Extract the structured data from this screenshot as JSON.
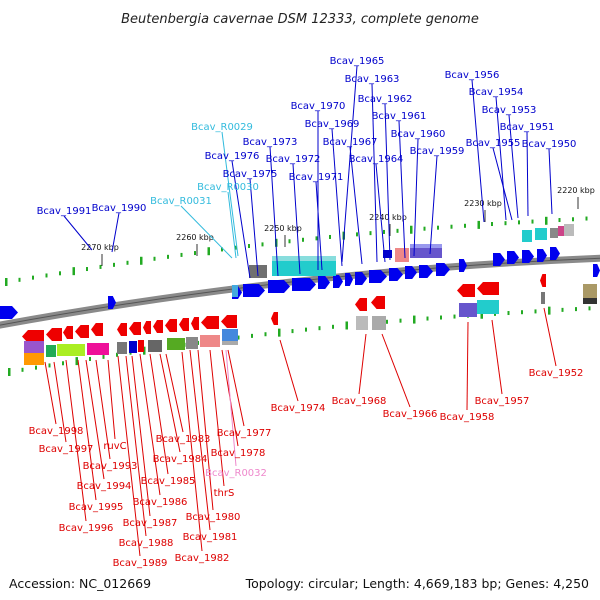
{
  "title": "Beutenbergia cavernae DSM 12333, complete genome",
  "footer": {
    "accession": "Accession: NC_012669",
    "topology": "Topology: circular; Length: 4,669,183 bp; Genes: 4,250"
  },
  "scale_ticks": [
    "2270 kbp",
    "2260 kbp",
    "2250 kbp",
    "2240 kbp",
    "2230 kbp",
    "2220 kbp"
  ],
  "labels_top": [
    {
      "name": "Bcav_1965",
      "color": "#0000cc"
    },
    {
      "name": "Bcav_1963",
      "color": "#0000cc"
    },
    {
      "name": "Bcav_1962",
      "color": "#0000cc"
    },
    {
      "name": "Bcav_1961",
      "color": "#0000cc"
    },
    {
      "name": "Bcav_1960",
      "color": "#0000cc"
    },
    {
      "name": "Bcav_1959",
      "color": "#0000cc"
    },
    {
      "name": "Bcav_1964",
      "color": "#0000cc"
    },
    {
      "name": "Bcav_1967",
      "color": "#0000cc"
    },
    {
      "name": "Bcav_1969",
      "color": "#0000cc"
    },
    {
      "name": "Bcav_1970",
      "color": "#0000cc"
    },
    {
      "name": "Bcav_1973",
      "color": "#0000cc"
    },
    {
      "name": "Bcav_1972",
      "color": "#0000cc"
    },
    {
      "name": "Bcav_1971",
      "color": "#0000cc"
    },
    {
      "name": "Bcav_1976",
      "color": "#0000cc"
    },
    {
      "name": "Bcav_1975",
      "color": "#0000cc"
    },
    {
      "name": "Bcav_R0029",
      "color": "#33bbdd"
    },
    {
      "name": "Bcav_R0030",
      "color": "#33bbdd"
    },
    {
      "name": "Bcav_R0031",
      "color": "#33bbdd"
    },
    {
      "name": "Bcav_1991",
      "color": "#0000cc"
    },
    {
      "name": "Bcav_1990",
      "color": "#0000cc"
    },
    {
      "name": "Bcav_1956",
      "color": "#0000cc"
    },
    {
      "name": "Bcav_1954",
      "color": "#0000cc"
    },
    {
      "name": "Bcav_1953",
      "color": "#0000cc"
    },
    {
      "name": "Bcav_1951",
      "color": "#0000cc"
    },
    {
      "name": "Bcav_1955",
      "color": "#0000cc"
    },
    {
      "name": "Bcav_1950",
      "color": "#0000cc"
    }
  ],
  "labels_bottom": [
    {
      "name": "Bcav_1998",
      "color": "#dd0000"
    },
    {
      "name": "Bcav_1997",
      "color": "#dd0000"
    },
    {
      "name": "ruvC",
      "color": "#dd0000"
    },
    {
      "name": "Bcav_1993",
      "color": "#dd0000"
    },
    {
      "name": "Bcav_1994",
      "color": "#dd0000"
    },
    {
      "name": "Bcav_1995",
      "color": "#dd0000"
    },
    {
      "name": "Bcav_1996",
      "color": "#dd0000"
    },
    {
      "name": "Bcav_1983",
      "color": "#dd0000"
    },
    {
      "name": "Bcav_1984",
      "color": "#dd0000"
    },
    {
      "name": "Bcav_1985",
      "color": "#dd0000"
    },
    {
      "name": "Bcav_1986",
      "color": "#dd0000"
    },
    {
      "name": "Bcav_1987",
      "color": "#dd0000"
    },
    {
      "name": "Bcav_1988",
      "color": "#dd0000"
    },
    {
      "name": "Bcav_1989",
      "color": "#dd0000"
    },
    {
      "name": "Bcav_1977",
      "color": "#dd0000"
    },
    {
      "name": "Bcav_1978",
      "color": "#dd0000"
    },
    {
      "name": "Bcav_R0032",
      "color": "#ee88cc"
    },
    {
      "name": "thrS",
      "color": "#dd0000"
    },
    {
      "name": "Bcav_1980",
      "color": "#dd0000"
    },
    {
      "name": "Bcav_1981",
      "color": "#dd0000"
    },
    {
      "name": "Bcav_1982",
      "color": "#dd0000"
    },
    {
      "name": "Bcav_1974",
      "color": "#dd0000"
    },
    {
      "name": "Bcav_1968",
      "color": "#dd0000"
    },
    {
      "name": "Bcav_1966",
      "color": "#dd0000"
    },
    {
      "name": "Bcav_1958",
      "color": "#dd0000"
    },
    {
      "name": "Bcav_1957",
      "color": "#dd0000"
    },
    {
      "name": "Bcav_1952",
      "color": "#dd0000"
    }
  ]
}
